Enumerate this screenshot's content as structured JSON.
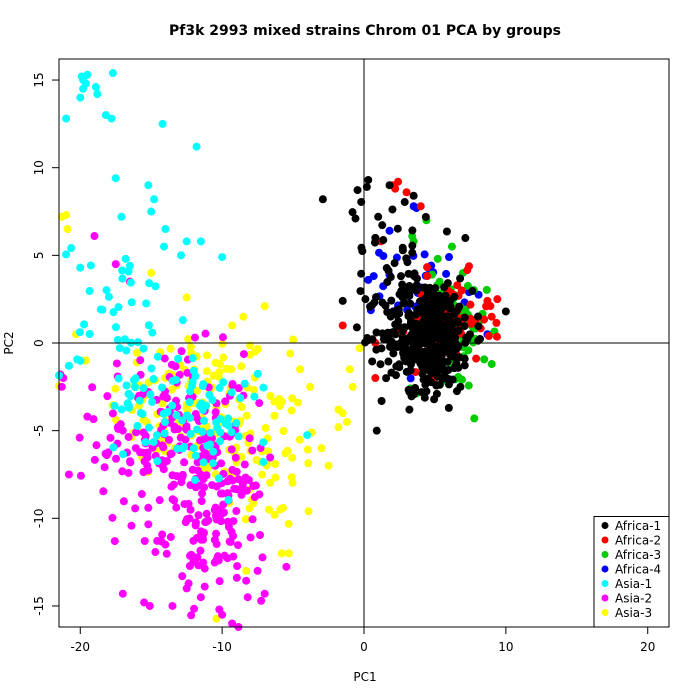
{
  "chart_data": {
    "type": "scatter",
    "title": "Pf3k 2993 mixed strains Chrom 01 PCA by groups",
    "xlabel": "PC1",
    "ylabel": "PC2",
    "xlim": [
      -21.5,
      21.5
    ],
    "ylim": [
      -16.2,
      16.2
    ],
    "x_ticks": [
      -20,
      -10,
      0,
      10,
      20
    ],
    "y_ticks": [
      -15,
      -10,
      -5,
      0,
      5,
      10,
      15
    ],
    "reference_lines": {
      "x": 0,
      "y": 0
    },
    "grid": false,
    "legend_position": "bottom-right",
    "series": [
      {
        "name": "Africa-1",
        "color": "#000000",
        "clusters": [
          {
            "cx": 4.5,
            "cy": 0.5,
            "sx": 1.6,
            "sy": 1.6,
            "n": 420
          },
          {
            "cx": 2.0,
            "cy": 5.5,
            "sx": 1.2,
            "sy": 2.0,
            "n": 30
          }
        ],
        "points": [
          [
            -2.9,
            8.2
          ],
          [
            0.2,
            8.9
          ],
          [
            0.3,
            9.3
          ],
          [
            1.8,
            9.0
          ],
          [
            -0.6,
            7.1
          ],
          [
            0.9,
            -5.0
          ],
          [
            3.5,
            8.4
          ],
          [
            1.0,
            7.2
          ],
          [
            -1.5,
            2.4
          ],
          [
            10.0,
            1.8
          ],
          [
            0.8,
            6.0
          ],
          [
            0.1,
            2.5
          ],
          [
            3.2,
            -3.8
          ]
        ]
      },
      {
        "name": "Africa-2",
        "color": "#ff0000",
        "clusters": [
          {
            "cx": 6.0,
            "cy": 1.2,
            "sx": 1.5,
            "sy": 1.3,
            "n": 60
          }
        ],
        "points": [
          [
            2.4,
            9.2
          ],
          [
            2.0,
            9.0
          ],
          [
            2.2,
            8.8
          ],
          [
            -1.5,
            1.0
          ],
          [
            0.8,
            -2.0
          ],
          [
            0.8,
            0.0
          ],
          [
            4.0,
            7.8
          ],
          [
            9.4,
            2.5
          ],
          [
            8.7,
            2.4
          ],
          [
            9.0,
            1.5
          ],
          [
            8.8,
            0.4
          ],
          [
            3.0,
            8.6
          ],
          [
            1.2,
            5.8
          ]
        ]
      },
      {
        "name": "Africa-3",
        "color": "#00cc00",
        "clusters": [
          {
            "cx": 6.0,
            "cy": 0.5,
            "sx": 1.3,
            "sy": 1.6,
            "n": 90
          }
        ],
        "points": [
          [
            4.4,
            7.0
          ],
          [
            6.2,
            5.5
          ],
          [
            3.5,
            5.8
          ],
          [
            3.4,
            6.1
          ],
          [
            9.0,
            -1.2
          ],
          [
            5.2,
            4.8
          ],
          [
            4.8,
            3.9
          ]
        ]
      },
      {
        "name": "Africa-4",
        "color": "#0000ff",
        "clusters": [
          {
            "cx": 4.0,
            "cy": 3.0,
            "sx": 1.4,
            "sy": 1.3,
            "n": 40
          }
        ],
        "points": [
          [
            3.5,
            7.8
          ],
          [
            3.7,
            7.7
          ],
          [
            1.8,
            6.4
          ],
          [
            0.3,
            3.6
          ],
          [
            7.4,
            2.9
          ],
          [
            8.7,
            0.5
          ]
        ]
      },
      {
        "name": "Asia-1",
        "color": "#00ffff",
        "clusters": [
          {
            "cx": -17.0,
            "cy": 0.8,
            "sx": 2.2,
            "sy": 2.6,
            "n": 45
          },
          {
            "cx": -13.5,
            "cy": -3.5,
            "sx": 2.0,
            "sy": 1.3,
            "n": 55
          },
          {
            "cx": -10.0,
            "cy": -5.0,
            "sx": 2.0,
            "sy": 1.8,
            "n": 35
          }
        ],
        "points": [
          [
            -19.8,
            15.0
          ],
          [
            -19.9,
            15.2
          ],
          [
            -19.5,
            15.3
          ],
          [
            -19.6,
            14.8
          ],
          [
            -17.7,
            15.4
          ],
          [
            -19.8,
            14.5
          ],
          [
            -20.0,
            14.0
          ],
          [
            -18.8,
            14.2
          ],
          [
            -18.9,
            14.6
          ],
          [
            -17.8,
            12.8
          ],
          [
            -18.2,
            13.0
          ],
          [
            -21.0,
            12.8
          ],
          [
            -14.2,
            12.5
          ],
          [
            -11.8,
            11.2
          ],
          [
            -17.5,
            9.4
          ],
          [
            -15.2,
            9.0
          ],
          [
            -14.8,
            8.2
          ],
          [
            -15.0,
            7.5
          ],
          [
            -17.1,
            7.2
          ],
          [
            -14.0,
            6.5
          ],
          [
            -14.1,
            5.5
          ],
          [
            -12.5,
            5.8
          ],
          [
            -11.5,
            5.8
          ],
          [
            -12.9,
            5.0
          ],
          [
            -10.0,
            4.9
          ],
          [
            -16.8,
            4.8
          ],
          [
            -16.5,
            4.4
          ],
          [
            -20.0,
            4.3
          ]
        ]
      },
      {
        "name": "Asia-2",
        "color": "#ff00ff",
        "clusters": [
          {
            "cx": -13.5,
            "cy": -5.5,
            "sx": 2.6,
            "sy": 2.5,
            "n": 180
          },
          {
            "cx": -10.5,
            "cy": -10.5,
            "sx": 1.8,
            "sy": 2.0,
            "n": 120
          }
        ],
        "points": [
          [
            -21.2,
            -2.0
          ],
          [
            -21.3,
            -2.5
          ],
          [
            -21.4,
            -1.8
          ],
          [
            -20.8,
            -7.5
          ],
          [
            -19.5,
            -4.2
          ],
          [
            -19.0,
            6.1
          ],
          [
            -17.5,
            4.5
          ],
          [
            -16.5,
            3.5
          ],
          [
            -15.5,
            -14.8
          ],
          [
            -15.1,
            -15.0
          ],
          [
            -13.5,
            -15.0
          ],
          [
            -12.5,
            -14.0
          ],
          [
            -10.2,
            -15.2
          ],
          [
            -10.0,
            -15.5
          ],
          [
            -11.5,
            -14.5
          ],
          [
            -9.3,
            -16.0
          ],
          [
            -8.2,
            -14.5
          ],
          [
            -7.5,
            -13.0
          ],
          [
            -7.0,
            -14.3
          ],
          [
            -17.0,
            -14.3
          ],
          [
            -14.0,
            -11.5
          ],
          [
            -8.5,
            -3.0
          ]
        ]
      },
      {
        "name": "Asia-3",
        "color": "#ffff00",
        "clusters": [
          {
            "cx": -12.0,
            "cy": -3.5,
            "sx": 3.0,
            "sy": 2.2,
            "n": 130
          },
          {
            "cx": -7.0,
            "cy": -6.5,
            "sx": 2.2,
            "sy": 2.2,
            "n": 60
          }
        ],
        "points": [
          [
            -21.0,
            7.3
          ],
          [
            -20.9,
            6.5
          ],
          [
            -21.3,
            7.2
          ],
          [
            -20.3,
            0.5
          ],
          [
            -19.6,
            -1.0
          ],
          [
            -15.0,
            4.0
          ],
          [
            -12.5,
            2.6
          ],
          [
            -9.3,
            1.0
          ],
          [
            -8.5,
            1.5
          ],
          [
            -7.0,
            2.1
          ],
          [
            -5.0,
            0.2
          ],
          [
            -5.2,
            -0.6
          ],
          [
            -4.5,
            -1.5
          ],
          [
            -1.2,
            -4.5
          ],
          [
            -1.5,
            -4.0
          ],
          [
            -1.8,
            -4.8
          ],
          [
            -1.0,
            -1.5
          ],
          [
            -0.8,
            -2.5
          ],
          [
            -0.3,
            -0.3
          ],
          [
            -3.0,
            -6.0
          ],
          [
            -5.8,
            -12.0
          ],
          [
            -5.3,
            -12.0
          ],
          [
            -6.3,
            -9.8
          ],
          [
            -8.3,
            -13.0
          ],
          [
            -2.5,
            -7.0
          ],
          [
            -1.8,
            -3.8
          ],
          [
            -3.8,
            -2.5
          ]
        ]
      }
    ]
  }
}
